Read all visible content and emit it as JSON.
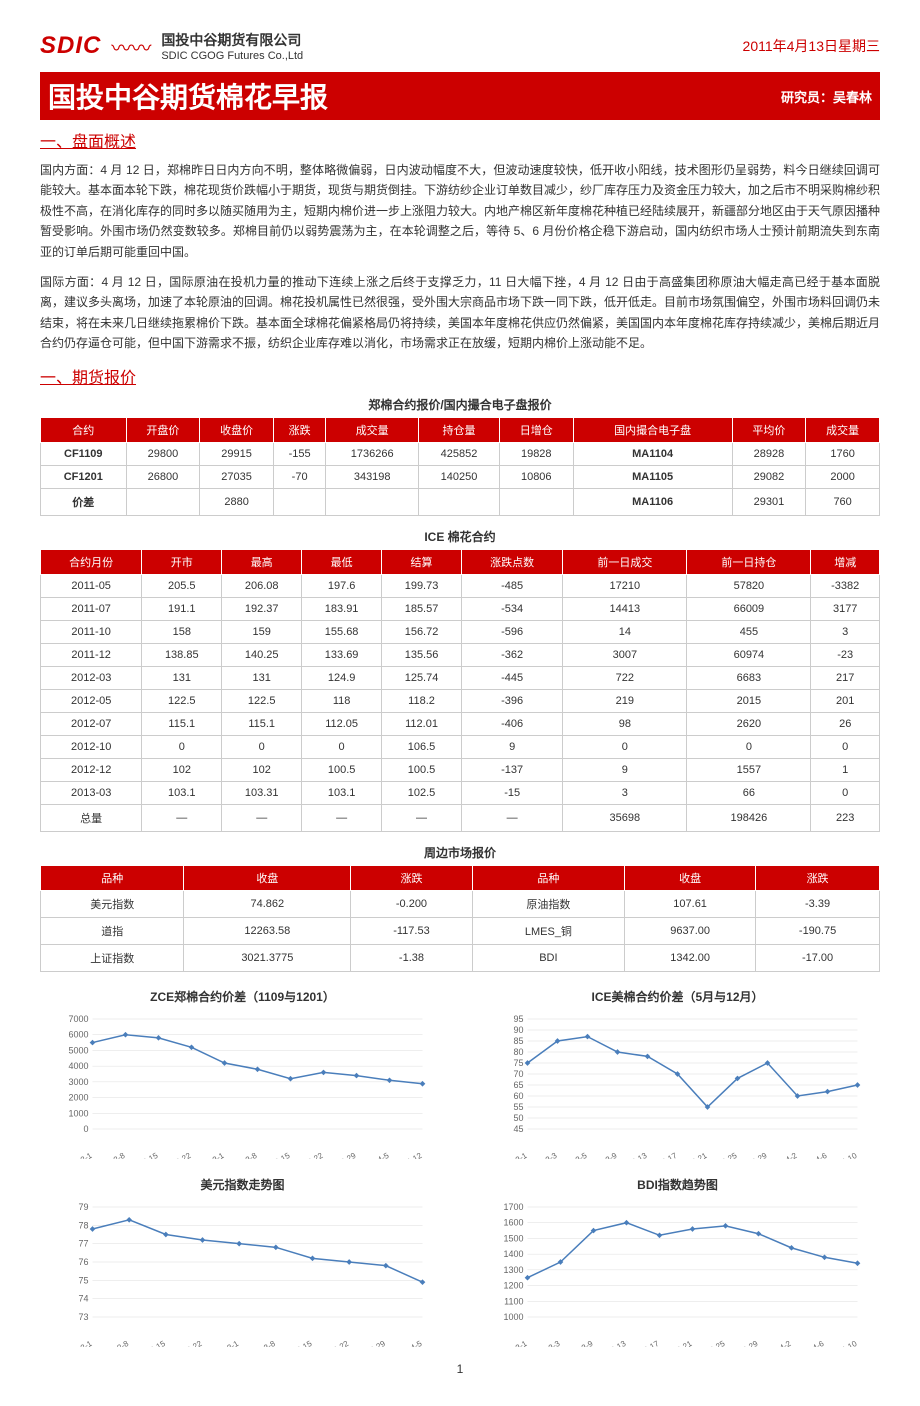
{
  "header": {
    "logo_text": "SDIC",
    "company_cn": "国投中谷期货有限公司",
    "company_en": "SDIC CGOG Futures Co.,Ltd",
    "date": "2011年4月13日星期三"
  },
  "title": {
    "main": "国投中谷期货棉花早报",
    "analyst": "研究员：吴春林"
  },
  "sections": {
    "overview_h": "一、盘面概述",
    "overview_p1": "国内方面：4 月 12 日，郑棉昨日日内方向不明，整体略微偏弱，日内波动幅度不大，但波动速度较快，低开收小阳线，技术图形仍呈弱势，料今日继续回调可能较大。基本面本轮下跌，棉花现货价跌幅小于期货，现货与期货倒挂。下游纺纱企业订单数目减少，纱厂库存压力及资金压力较大，加之后市不明采购棉纱积极性不高，在消化库存的同时多以随买随用为主，短期内棉价进一步上涨阻力较大。内地产棉区新年度棉花种植已经陆续展开，新疆部分地区由于天气原因播种暂受影响。外围市场仍然变数较多。郑棉目前仍以弱势震荡为主，在本轮调整之后，等待 5、6 月份价格企稳下游启动，国内纺织市场人士预计前期流失到东南亚的订单后期可能重回中国。",
    "overview_p2": "国际方面：4 月 12 日，国际原油在投机力量的推动下连续上涨之后终于支撑乏力，11 日大幅下挫，4 月 12 日由于高盛集团称原油大幅走高已经于基本面脱离，建议多头离场，加速了本轮原油的回调。棉花投机属性已然很强，受外围大宗商品市场下跌一同下跌，低开低走。目前市场氛围偏空，外围市场料回调仍未结束，将在未来几日继续拖累棉价下跌。基本面全球棉花偏紧格局仍将持续，美国本年度棉花供应仍然偏紧，美国国内本年度棉花库存持续减少，美棉后期近月合约仍存逼仓可能，但中国下游需求不振，纺织企业库存难以消化，市场需求正在放缓，短期内棉价上涨动能不足。",
    "quotes_h": "一、期货报价"
  },
  "table1": {
    "caption": "郑棉合约报价/国内撮合电子盘报价",
    "headers": [
      "合约",
      "开盘价",
      "收盘价",
      "涨跌",
      "成交量",
      "持仓量",
      "日增仓",
      "国内撮合电子盘",
      "平均价",
      "成交量"
    ],
    "rows": [
      [
        "CF1109",
        "29800",
        "29915",
        "-155",
        "1736266",
        "425852",
        "19828",
        "MA1104",
        "28928",
        "1760"
      ],
      [
        "CF1201",
        "26800",
        "27035",
        "-70",
        "343198",
        "140250",
        "10806",
        "MA1105",
        "29082",
        "2000"
      ],
      [
        "价差",
        "",
        "2880",
        "",
        "",
        "",
        "",
        "MA1106",
        "29301",
        "760"
      ]
    ]
  },
  "table2": {
    "caption": "ICE 棉花合约",
    "headers": [
      "合约月份",
      "开市",
      "最高",
      "最低",
      "结算",
      "涨跌点数",
      "前一日成交",
      "前一日持仓",
      "增减"
    ],
    "rows": [
      [
        "2011-05",
        "205.5",
        "206.08",
        "197.6",
        "199.73",
        "-485",
        "17210",
        "57820",
        "-3382"
      ],
      [
        "2011-07",
        "191.1",
        "192.37",
        "183.91",
        "185.57",
        "-534",
        "14413",
        "66009",
        "3177"
      ],
      [
        "2011-10",
        "158",
        "159",
        "155.68",
        "156.72",
        "-596",
        "14",
        "455",
        "3"
      ],
      [
        "2011-12",
        "138.85",
        "140.25",
        "133.69",
        "135.56",
        "-362",
        "3007",
        "60974",
        "-23"
      ],
      [
        "2012-03",
        "131",
        "131",
        "124.9",
        "125.74",
        "-445",
        "722",
        "6683",
        "217"
      ],
      [
        "2012-05",
        "122.5",
        "122.5",
        "118",
        "118.2",
        "-396",
        "219",
        "2015",
        "201"
      ],
      [
        "2012-07",
        "115.1",
        "115.1",
        "112.05",
        "112.01",
        "-406",
        "98",
        "2620",
        "26"
      ],
      [
        "2012-10",
        "0",
        "0",
        "0",
        "106.5",
        "9",
        "0",
        "0",
        "0"
      ],
      [
        "2012-12",
        "102",
        "102",
        "100.5",
        "100.5",
        "-137",
        "9",
        "1557",
        "1"
      ],
      [
        "2013-03",
        "103.1",
        "103.31",
        "103.1",
        "102.5",
        "-15",
        "3",
        "66",
        "0"
      ],
      [
        "总量",
        "—",
        "—",
        "—",
        "—",
        "—",
        "35698",
        "198426",
        "223"
      ]
    ]
  },
  "table3": {
    "caption": "周边市场报价",
    "headers": [
      "品种",
      "收盘",
      "涨跌",
      "品种",
      "收盘",
      "涨跌"
    ],
    "rows": [
      [
        "美元指数",
        "74.862",
        "-0.200",
        "原油指数",
        "107.61",
        "-3.39"
      ],
      [
        "道指",
        "12263.58",
        "-117.53",
        "LMES_铜",
        "9637.00",
        "-190.75"
      ],
      [
        "上证指数",
        "3021.3775",
        "-1.38",
        "BDI",
        "1342.00",
        "-17.00"
      ]
    ]
  },
  "charts": {
    "chart1": {
      "title": "ZCE郑棉合约价差（1109与1201）",
      "ylim": [
        0,
        7000
      ],
      "ystep": 1000,
      "ylabels": [
        "0",
        "1000",
        "2000",
        "3000",
        "4000",
        "5000",
        "6000",
        "7000"
      ],
      "xlabels": [
        "2011-2-1",
        "2011-2-8",
        "2011-2-15",
        "2011-2-22",
        "2011-3-1",
        "2011-3-8",
        "2011-3-15",
        "2011-3-22",
        "2011-3-29",
        "2011-4-5",
        "2011-4-12"
      ],
      "values": [
        5500,
        6000,
        5800,
        5200,
        4200,
        3800,
        3200,
        3600,
        3400,
        3100,
        2880
      ],
      "line_color": "#4a7ebb"
    },
    "chart2": {
      "title": "ICE美棉合约价差（5月与12月）",
      "ylim": [
        45,
        95
      ],
      "ystep": 5,
      "ylabels": [
        "45",
        "50",
        "55",
        "60",
        "65",
        "70",
        "75",
        "80",
        "85",
        "90",
        "95"
      ],
      "xlabels": [
        "2011-3-1",
        "2011-3-3",
        "2011-3-5",
        "2011-3-9",
        "2011-3-13",
        "2011-3-17",
        "2011-3-21",
        "2011-3-25",
        "2011-3-29",
        "2011-4-2",
        "2011-4-6",
        "2011-4-10"
      ],
      "values": [
        75,
        85,
        87,
        80,
        78,
        70,
        55,
        68,
        75,
        60,
        62,
        65
      ],
      "line_color": "#4a7ebb"
    },
    "chart3": {
      "title": "美元指数走势图",
      "ylim": [
        73,
        79
      ],
      "ystep": 1,
      "ylabels": [
        "73",
        "74",
        "75",
        "76",
        "77",
        "78",
        "79"
      ],
      "xlabels": [
        "2011-2-1",
        "2011-2-8",
        "2011-2-15",
        "2011-2-22",
        "2011-3-1",
        "2011-3-8",
        "2011-3-15",
        "2011-3-22",
        "2011-3-29",
        "2011-4-5"
      ],
      "values": [
        77.8,
        78.3,
        77.5,
        77.2,
        77.0,
        76.8,
        76.2,
        76.0,
        75.8,
        74.9
      ],
      "line_color": "#4a7ebb"
    },
    "chart4": {
      "title": "BDI指数趋势图",
      "ylim": [
        1000,
        1700
      ],
      "ystep": 100,
      "ylabels": [
        "1000",
        "1100",
        "1200",
        "1300",
        "1400",
        "1500",
        "1600",
        "1700"
      ],
      "xlabels": [
        "2011-3-1",
        "2011-3-3",
        "2011-3-9",
        "2011-3-13",
        "2011-3-17",
        "2011-3-21",
        "2011-3-25",
        "2011-3-29",
        "2011-4-2",
        "2011-4-6",
        "2011-4-10"
      ],
      "values": [
        1250,
        1350,
        1550,
        1600,
        1520,
        1560,
        1580,
        1530,
        1440,
        1380,
        1342
      ],
      "line_color": "#4a7ebb"
    }
  },
  "page_num": "1"
}
